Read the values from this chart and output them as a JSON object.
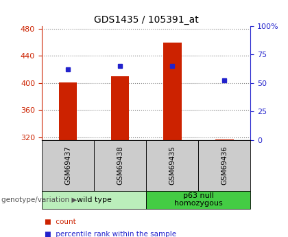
{
  "title": "GDS1435 / 105391_at",
  "samples": [
    "GSM69437",
    "GSM69438",
    "GSM69435",
    "GSM69436"
  ],
  "counts": [
    401,
    410,
    460,
    317
  ],
  "percentiles": [
    62,
    65,
    65,
    52
  ],
  "ylim_left": [
    316,
    484
  ],
  "ylim_right": [
    0,
    100
  ],
  "yticks_left": [
    320,
    360,
    400,
    440,
    480
  ],
  "yticks_right": [
    0,
    25,
    50,
    75,
    100
  ],
  "bar_color": "#cc2200",
  "dot_color": "#2222cc",
  "bar_width": 0.35,
  "groups": [
    {
      "label": "wild type",
      "samples": [
        0,
        1
      ],
      "color": "#bbeebb"
    },
    {
      "label": "p63 null\nhomozygous",
      "samples": [
        2,
        3
      ],
      "color": "#44cc44"
    }
  ],
  "legend_count_label": "count",
  "legend_pct_label": "percentile rank within the sample",
  "genotype_label": "genotype/variation",
  "grid_color": "#888888",
  "axis_left_color": "#cc2200",
  "axis_right_color": "#2222cc",
  "sample_box_color": "#cccccc"
}
